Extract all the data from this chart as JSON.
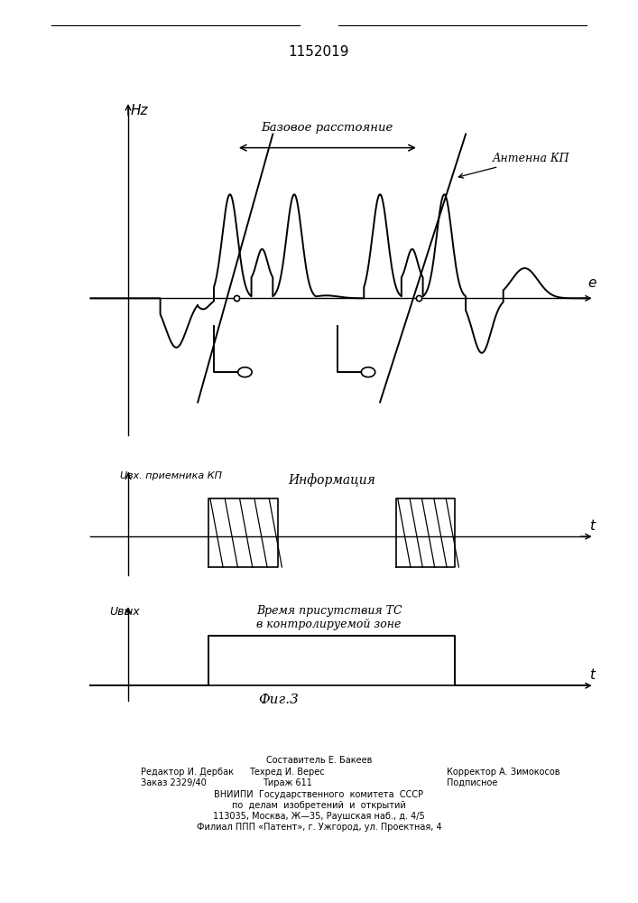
{
  "title": "1152019",
  "fig_width": 7.07,
  "fig_height": 10.0,
  "bg_color": "#ffffff",
  "panel1": {
    "ylabel": "Hz",
    "xlabel": "e",
    "annotation_base": "Базовое расстояние",
    "annotation_antenna": "Антенна КП"
  },
  "panel2": {
    "ylabel": "Uвх. приемника КП",
    "xlabel": "t",
    "annotation": "Информация"
  },
  "panel3": {
    "ylabel": "Uвых",
    "xlabel": "t",
    "annotation": "Время присутствия ТС\nв контролируемой зоне",
    "fig_label": "Фиг.3"
  },
  "footer_lines": [
    "Составитель Е. Бакеев",
    "Редактор И. Дербак",
    "Заказ 2329/40",
    "Техред И. Верес",
    "Тираж 611",
    "Корректор А. Зимокосов",
    "Подписное",
    "ВНИИПИ  Государственного  комитета  СССР",
    "по  делам  изобретений  и  открытий",
    "113035, Москва, Ж—35, Раушская наб., д. 4/5",
    "Филиал ППП «Патент», г. Ужгород, ул. Проектная, 4"
  ]
}
